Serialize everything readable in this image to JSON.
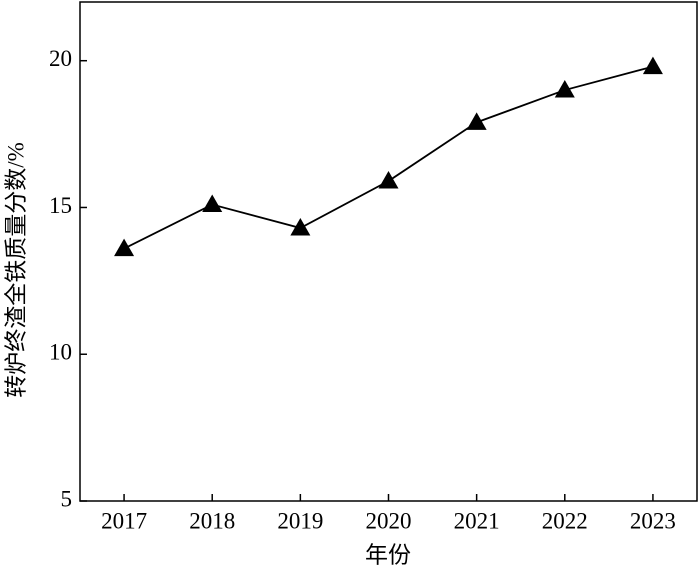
{
  "chart_data": {
    "type": "line",
    "x": [
      2017,
      2018,
      2019,
      2020,
      2021,
      2022,
      2023
    ],
    "series": [
      {
        "color": "#000000",
        "values": [
          13.6,
          15.1,
          14.3,
          15.9,
          17.9,
          19.0,
          19.8
        ]
      }
    ],
    "xlim": [
      2016.5,
      2023.5
    ],
    "xticks": [
      2017,
      2018,
      2019,
      2020,
      2021,
      2022,
      2023
    ],
    "ylim": [
      5,
      22
    ],
    "yticks": [
      5,
      10,
      15,
      20
    ],
    "xlabel": "年份",
    "ylabel": "转炉终渣全铁质量分数/%",
    "marker": "triangle"
  }
}
